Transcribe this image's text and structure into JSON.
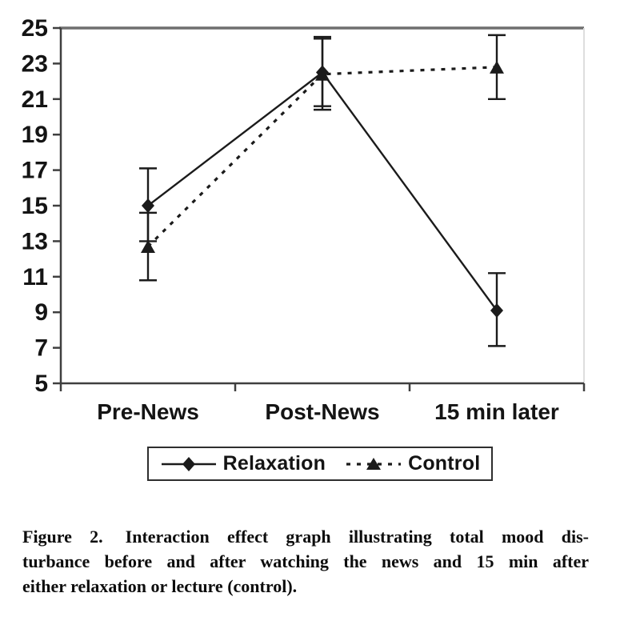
{
  "chart_data": {
    "type": "line",
    "categories": [
      "Pre-News",
      "Post-News",
      "15 min later"
    ],
    "series": [
      {
        "name": "Relaxation",
        "marker": "diamond",
        "line": "solid",
        "values": [
          15.0,
          22.5,
          9.1
        ],
        "error_low": [
          13.0,
          20.4,
          7.1
        ],
        "error_high": [
          17.1,
          24.4,
          11.2
        ]
      },
      {
        "name": "Control",
        "marker": "triangle",
        "line": "dashed",
        "values": [
          12.7,
          22.4,
          22.8
        ],
        "error_low": [
          10.8,
          20.6,
          21.0
        ],
        "error_high": [
          14.6,
          24.5,
          24.6
        ]
      }
    ],
    "title": "",
    "xlabel": "",
    "ylabel": "",
    "ylim": [
      5,
      25
    ],
    "ytick_step": 2,
    "grid": false,
    "legend_position": "bottom",
    "error_bars": true
  },
  "legend": {
    "items": [
      {
        "label": "Relaxation"
      },
      {
        "label": "Control"
      }
    ]
  },
  "caption": {
    "figure_label": "Figure 2.",
    "line1_rest": "Interaction effect graph illustrating total mood dis-",
    "line2": "turbance before and after watching the news and 15 min after",
    "line3": "either relaxation or lecture (control)."
  },
  "colors": {
    "ink": "#1b1b1b",
    "axis": "#3f3f3f",
    "frame_top": "#6f6f6f",
    "frame_right": "#dedede",
    "text": "#141414"
  }
}
